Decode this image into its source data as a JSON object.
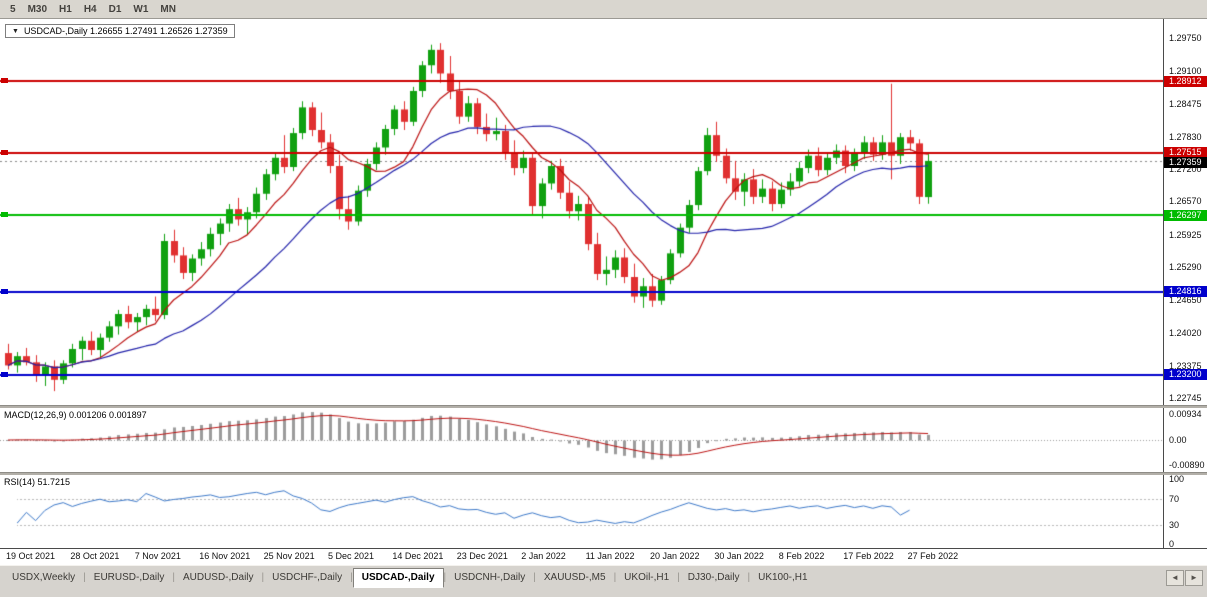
{
  "toolbar": {
    "timeframes": [
      "5",
      "M30",
      "H1",
      "H4",
      "D1",
      "W1",
      "MN"
    ]
  },
  "title_box": {
    "arrow_icon": "▼",
    "text": "USDCAD-,Daily 1.26655 1.27491 1.26526 1.27359"
  },
  "chart_data": {
    "type": "candlestick",
    "symbol": "USDCAD-,Daily",
    "price_range": [
      1.2261,
      1.3012
    ],
    "bull_color": "#10a010",
    "bear_color": "#e03030",
    "price_axis_labels": [
      "1.29750",
      "1.29100",
      "1.28475",
      "1.27830",
      "1.27200",
      "1.26570",
      "1.25925",
      "1.25290",
      "1.24650",
      "1.24020",
      "1.23375",
      "1.22745"
    ],
    "hlines": [
      {
        "price": 1.28912,
        "label": "1.28912",
        "color": "#cc0000"
      },
      {
        "price": 1.27515,
        "label": "1.27515",
        "color": "#cc0000"
      },
      {
        "price": 1.26297,
        "label": "1.26297",
        "color": "#00bb00"
      },
      {
        "price": 1.24816,
        "label": "1.24816",
        "color": "#0000cc"
      },
      {
        "price": 1.232,
        "label": "1.23200",
        "color": "#0000cc"
      }
    ],
    "current_price": {
      "price": 1.27359,
      "label": "1.27359",
      "color": "#000000"
    },
    "moving_averages": [
      {
        "period": 8,
        "color": "#bb1111"
      },
      {
        "period": 20,
        "color": "#2222aa"
      }
    ],
    "indicators": {
      "macd": {
        "label": "MACD(12,26,9) 0.001206 0.001897",
        "fast": 12,
        "slow": 26,
        "signal": 9,
        "axis_labels": [
          "0.00934",
          "0.00",
          "-0.00890"
        ],
        "range": [
          -0.0115,
          0.0115
        ],
        "bar_color": "#9c9c9c",
        "signal_color": "#bb1111"
      },
      "rsi": {
        "label": "RSI(14) 51.7215",
        "period": 14,
        "levels": [
          70,
          30
        ],
        "axis_labels": [
          "100",
          "70",
          "30",
          "0"
        ],
        "range": [
          0,
          100
        ],
        "line_color": "#3c78c8"
      }
    },
    "x_labels": [
      "19 Oct 2021",
      "28 Oct 2021",
      "7 Nov 2021",
      "16 Nov 2021",
      "25 Nov 2021",
      "5 Dec 2021",
      "14 Dec 2021",
      "23 Dec 2021",
      "2 Jan 2022",
      "11 Jan 2022",
      "20 Jan 2022",
      "30 Jan 2022",
      "8 Feb 2022",
      "17 Feb 2022",
      "27 Feb 2022"
    ],
    "bars_per_label": 7,
    "candles": [
      [
        1.2362,
        1.238,
        1.233,
        1.2338
      ],
      [
        1.2338,
        1.2364,
        1.2324,
        1.2356
      ],
      [
        1.2356,
        1.2372,
        1.2338,
        1.2344
      ],
      [
        1.2344,
        1.2358,
        1.2306,
        1.2318
      ],
      [
        1.2318,
        1.2344,
        1.2298,
        1.2336
      ],
      [
        1.2336,
        1.2348,
        1.2288,
        1.231
      ],
      [
        1.231,
        1.2348,
        1.2302,
        1.2342
      ],
      [
        1.2342,
        1.238,
        1.2334,
        1.237
      ],
      [
        1.237,
        1.2394,
        1.2348,
        1.2386
      ],
      [
        1.2386,
        1.2404,
        1.2358,
        1.2368
      ],
      [
        1.2368,
        1.24,
        1.2354,
        1.2392
      ],
      [
        1.2392,
        1.2424,
        1.2384,
        1.2414
      ],
      [
        1.2414,
        1.2446,
        1.2398,
        1.2438
      ],
      [
        1.2438,
        1.2454,
        1.241,
        1.2422
      ],
      [
        1.2422,
        1.244,
        1.2404,
        1.2432
      ],
      [
        1.2432,
        1.2456,
        1.2416,
        1.2448
      ],
      [
        1.2448,
        1.2472,
        1.2424,
        1.2436
      ],
      [
        1.2436,
        1.2594,
        1.2428,
        1.258
      ],
      [
        1.258,
        1.2602,
        1.2538,
        1.2552
      ],
      [
        1.2552,
        1.2568,
        1.2506,
        1.2518
      ],
      [
        1.2518,
        1.2554,
        1.2502,
        1.2546
      ],
      [
        1.2546,
        1.2578,
        1.2532,
        1.2564
      ],
      [
        1.2564,
        1.2606,
        1.255,
        1.2594
      ],
      [
        1.2594,
        1.2624,
        1.2572,
        1.2614
      ],
      [
        1.2614,
        1.2652,
        1.2598,
        1.2642
      ],
      [
        1.2642,
        1.2664,
        1.261,
        1.2622
      ],
      [
        1.2622,
        1.2646,
        1.2592,
        1.2636
      ],
      [
        1.2636,
        1.2684,
        1.2624,
        1.2672
      ],
      [
        1.2672,
        1.272,
        1.266,
        1.271
      ],
      [
        1.271,
        1.2752,
        1.2698,
        1.2742
      ],
      [
        1.2742,
        1.2786,
        1.2712,
        1.2724
      ],
      [
        1.2724,
        1.28,
        1.2716,
        1.279
      ],
      [
        1.279,
        1.2852,
        1.2778,
        1.284
      ],
      [
        1.284,
        1.285,
        1.2784,
        1.2796
      ],
      [
        1.2796,
        1.283,
        1.276,
        1.2772
      ],
      [
        1.2772,
        1.2788,
        1.2712,
        1.2726
      ],
      [
        1.2726,
        1.2748,
        1.2622,
        1.2642
      ],
      [
        1.2642,
        1.2668,
        1.2602,
        1.2618
      ],
      [
        1.2618,
        1.2688,
        1.261,
        1.2678
      ],
      [
        1.2678,
        1.274,
        1.2666,
        1.273
      ],
      [
        1.273,
        1.2772,
        1.2718,
        1.2762
      ],
      [
        1.2762,
        1.2806,
        1.2748,
        1.2798
      ],
      [
        1.2798,
        1.2844,
        1.2786,
        1.2836
      ],
      [
        1.2836,
        1.2852,
        1.2796,
        1.2812
      ],
      [
        1.2812,
        1.288,
        1.2804,
        1.2872
      ],
      [
        1.2872,
        1.293,
        1.286,
        1.2922
      ],
      [
        1.2922,
        1.2962,
        1.2906,
        1.2952
      ],
      [
        1.2952,
        1.2965,
        1.2888,
        1.2906
      ],
      [
        1.2906,
        1.294,
        1.2856,
        1.2872
      ],
      [
        1.2872,
        1.289,
        1.2808,
        1.2822
      ],
      [
        1.2822,
        1.2862,
        1.2812,
        1.2848
      ],
      [
        1.2848,
        1.2858,
        1.2788,
        1.2802
      ],
      [
        1.2802,
        1.2828,
        1.2774,
        1.2788
      ],
      [
        1.2788,
        1.282,
        1.2776,
        1.2794
      ],
      [
        1.2794,
        1.2806,
        1.2738,
        1.2752
      ],
      [
        1.2752,
        1.2776,
        1.2708,
        1.2722
      ],
      [
        1.2722,
        1.2756,
        1.2712,
        1.2742
      ],
      [
        1.2742,
        1.275,
        1.2632,
        1.2648
      ],
      [
        1.2648,
        1.2702,
        1.2624,
        1.2692
      ],
      [
        1.2692,
        1.2736,
        1.268,
        1.2726
      ],
      [
        1.2726,
        1.274,
        1.2662,
        1.2674
      ],
      [
        1.2674,
        1.2696,
        1.2624,
        1.2638
      ],
      [
        1.2638,
        1.2668,
        1.262,
        1.2652
      ],
      [
        1.2652,
        1.2666,
        1.2562,
        1.2574
      ],
      [
        1.2574,
        1.2596,
        1.2504,
        1.2516
      ],
      [
        1.2516,
        1.255,
        1.2494,
        1.2524
      ],
      [
        1.2524,
        1.2562,
        1.2508,
        1.2548
      ],
      [
        1.2548,
        1.2566,
        1.2498,
        1.251
      ],
      [
        1.251,
        1.2536,
        1.246,
        1.2472
      ],
      [
        1.2472,
        1.2508,
        1.245,
        1.2492
      ],
      [
        1.2492,
        1.2516,
        1.2452,
        1.2464
      ],
      [
        1.2464,
        1.2512,
        1.2456,
        1.2504
      ],
      [
        1.2504,
        1.2564,
        1.2496,
        1.2556
      ],
      [
        1.2556,
        1.2614,
        1.2548,
        1.2606
      ],
      [
        1.2606,
        1.266,
        1.2596,
        1.265
      ],
      [
        1.265,
        1.2724,
        1.264,
        1.2716
      ],
      [
        1.2716,
        1.28,
        1.2708,
        1.2786
      ],
      [
        1.2786,
        1.2812,
        1.2734,
        1.2746
      ],
      [
        1.2746,
        1.276,
        1.2692,
        1.2702
      ],
      [
        1.2702,
        1.2736,
        1.266,
        1.2676
      ],
      [
        1.2676,
        1.2712,
        1.2648,
        1.27
      ],
      [
        1.27,
        1.272,
        1.2652,
        1.2666
      ],
      [
        1.2666,
        1.27,
        1.2654,
        1.2682
      ],
      [
        1.2682,
        1.2696,
        1.2638,
        1.2652
      ],
      [
        1.2652,
        1.2694,
        1.2644,
        1.268
      ],
      [
        1.268,
        1.2712,
        1.2668,
        1.2696
      ],
      [
        1.2696,
        1.2734,
        1.2686,
        1.2722
      ],
      [
        1.2722,
        1.2758,
        1.2712,
        1.2746
      ],
      [
        1.2746,
        1.2762,
        1.2706,
        1.2718
      ],
      [
        1.2718,
        1.2752,
        1.2708,
        1.2742
      ],
      [
        1.2742,
        1.2768,
        1.273,
        1.2756
      ],
      [
        1.2756,
        1.2766,
        1.2712,
        1.2726
      ],
      [
        1.2726,
        1.276,
        1.2716,
        1.2752
      ],
      [
        1.2752,
        1.2784,
        1.274,
        1.2772
      ],
      [
        1.2772,
        1.2782,
        1.2736,
        1.2748
      ],
      [
        1.2748,
        1.2786,
        1.2738,
        1.2772
      ],
      [
        1.2772,
        1.2886,
        1.27,
        1.2746
      ],
      [
        1.2746,
        1.279,
        1.273,
        1.2782
      ],
      [
        1.2782,
        1.2796,
        1.2756,
        1.277
      ],
      [
        1.277,
        1.2778,
        1.2652,
        1.2666
      ],
      [
        1.26655,
        1.27491,
        1.26526,
        1.27359
      ]
    ]
  },
  "tabs": {
    "items": [
      {
        "label": "USDX,Weekly",
        "active": false
      },
      {
        "label": "EURUSD-,Daily",
        "active": false
      },
      {
        "label": "AUDUSD-,Daily",
        "active": false
      },
      {
        "label": "USDCHF-,Daily",
        "active": false
      },
      {
        "label": "USDCAD-,Daily",
        "active": true
      },
      {
        "label": "USDCNH-,Daily",
        "active": false
      },
      {
        "label": "XAUUSD-,M5",
        "active": false
      },
      {
        "label": "UKOil-,H1",
        "active": false
      },
      {
        "label": "DJ30-,Daily",
        "active": false
      },
      {
        "label": "UK100-,H1",
        "active": false
      }
    ],
    "scroll_left_icon": "◄",
    "scroll_right_icon": "►"
  }
}
